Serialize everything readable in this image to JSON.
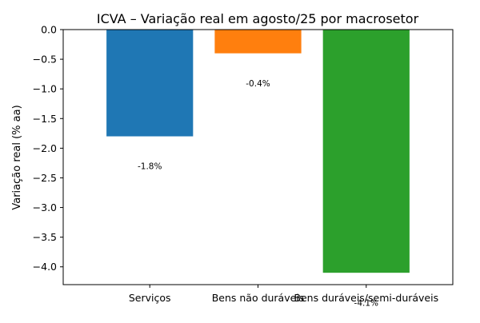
{
  "chart_data": {
    "type": "bar",
    "title": "ICVA – Variação real em agosto/25 por macrosetor",
    "xlabel": "",
    "ylabel": "Variação real (% aa)",
    "categories": [
      "Serviços",
      "Bens não duráveis",
      "Bens duráveis/semi-duráveis"
    ],
    "values": [
      -1.8,
      -0.4,
      -4.1
    ],
    "data_labels": [
      "-1.8%",
      "-0.4%",
      "-4.1%"
    ],
    "colors": [
      "#1f77b4",
      "#ff7f0e",
      "#2ca02c"
    ],
    "ylim": [
      -4.3,
      0.0
    ],
    "yticks": [
      0.0,
      -0.5,
      -1.0,
      -1.5,
      -2.0,
      -2.5,
      -3.0,
      -3.5,
      -4.0
    ],
    "ytick_labels": [
      "0.0",
      "−0.5",
      "−1.0",
      "−1.5",
      "−2.0",
      "−2.5",
      "−3.0",
      "−3.5",
      "−4.0"
    ],
    "grid": false,
    "legend": "none"
  }
}
